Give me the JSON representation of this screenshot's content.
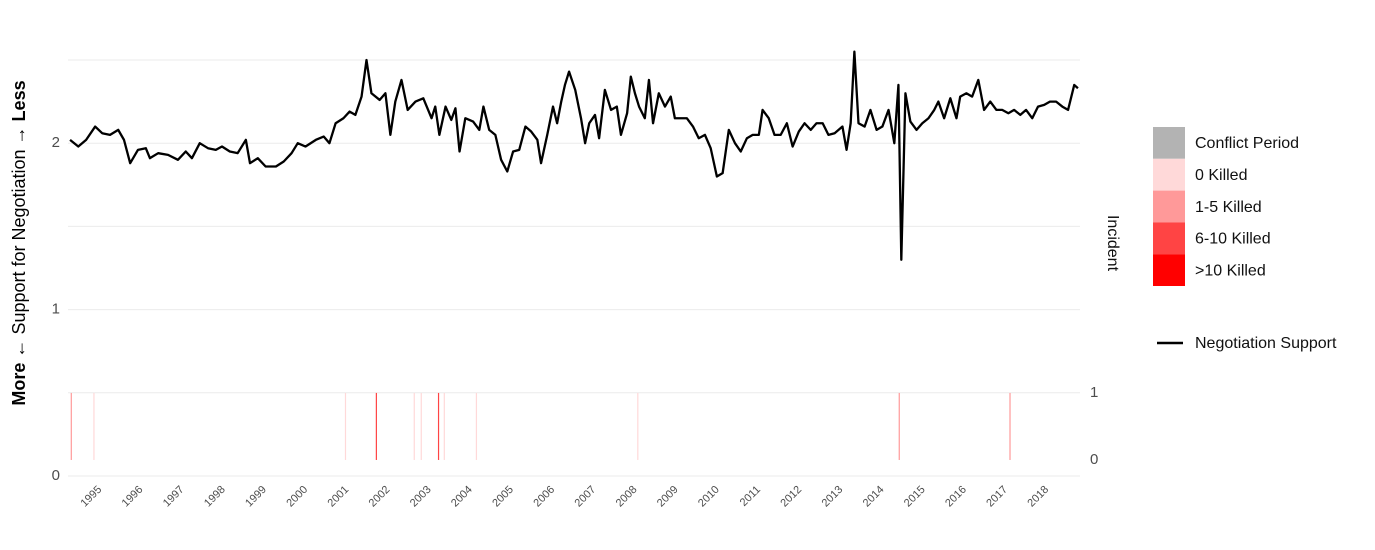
{
  "chart_data": {
    "type": "line",
    "x": [
      1994.27,
      1994.47,
      1994.66,
      1994.88,
      1995.05,
      1995.24,
      1995.44,
      1995.58,
      1995.73,
      1995.92,
      1996.11,
      1996.21,
      1996.41,
      1996.65,
      1996.89,
      1997.08,
      1997.23,
      1997.42,
      1997.62,
      1997.81,
      1997.96,
      1998.15,
      1998.34,
      1998.54,
      1998.64,
      1998.83,
      1999.02,
      1999.27,
      1999.46,
      1999.65,
      1999.8,
      1999.99,
      2000.24,
      2000.43,
      2000.57,
      2000.72,
      2000.91,
      2001.06,
      2001.2,
      2001.35,
      2001.47,
      2001.59,
      2001.79,
      2001.93,
      2002.05,
      2002.17,
      2002.32,
      2002.47,
      2002.66,
      2002.85,
      2003.05,
      2003.14,
      2003.24,
      2003.39,
      2003.53,
      2003.63,
      2003.73,
      2003.87,
      2004.06,
      2004.21,
      2004.31,
      2004.45,
      2004.6,
      2004.74,
      2004.89,
      2005.03,
      2005.18,
      2005.33,
      2005.47,
      2005.62,
      2005.71,
      2005.86,
      2006.0,
      2006.1,
      2006.2,
      2006.29,
      2006.39,
      2006.54,
      2006.68,
      2006.78,
      2006.88,
      2007.02,
      2007.12,
      2007.26,
      2007.41,
      2007.55,
      2007.65,
      2007.8,
      2007.89,
      2007.99,
      2008.09,
      2008.23,
      2008.33,
      2008.43,
      2008.57,
      2008.72,
      2008.86,
      2008.96,
      2009.06,
      2009.25,
      2009.4,
      2009.54,
      2009.69,
      2009.83,
      2009.98,
      2010.12,
      2010.27,
      2010.42,
      2010.56,
      2010.71,
      2010.85,
      2011.0,
      2011.09,
      2011.24,
      2011.38,
      2011.53,
      2011.68,
      2011.82,
      2011.97,
      2012.11,
      2012.26,
      2012.4,
      2012.55,
      2012.69,
      2012.84,
      2013.03,
      2013.13,
      2013.23,
      2013.32,
      2013.42,
      2013.57,
      2013.71,
      2013.86,
      2014.0,
      2014.15,
      2014.29,
      2014.39,
      2014.46,
      2014.56,
      2014.68,
      2014.83,
      2014.97,
      2015.12,
      2015.26,
      2015.36,
      2015.5,
      2015.65,
      2015.8,
      2015.89,
      2016.04,
      2016.18,
      2016.33,
      2016.47,
      2016.62,
      2016.77,
      2016.91,
      2017.06,
      2017.2,
      2017.35,
      2017.49,
      2017.64,
      2017.78,
      2017.93,
      2018.07,
      2018.22,
      2018.37,
      2018.51,
      2018.66,
      2018.75
    ],
    "series": [
      {
        "name": "Negotiation Support",
        "color": "#000000",
        "values": [
          2.02,
          1.98,
          2.02,
          2.1,
          2.06,
          2.05,
          2.08,
          2.02,
          1.88,
          1.96,
          1.97,
          1.91,
          1.94,
          1.93,
          1.9,
          1.95,
          1.91,
          2.0,
          1.97,
          1.96,
          1.98,
          1.95,
          1.94,
          2.02,
          1.88,
          1.91,
          1.86,
          1.86,
          1.89,
          1.94,
          2.0,
          1.98,
          2.02,
          2.04,
          2.0,
          2.12,
          2.15,
          2.19,
          2.17,
          2.28,
          2.5,
          2.3,
          2.26,
          2.3,
          2.05,
          2.25,
          2.38,
          2.2,
          2.25,
          2.27,
          2.15,
          2.22,
          2.05,
          2.22,
          2.14,
          2.21,
          1.95,
          2.15,
          2.13,
          2.08,
          2.22,
          2.08,
          2.05,
          1.9,
          1.83,
          1.95,
          1.96,
          2.1,
          2.07,
          2.02,
          1.88,
          2.05,
          2.22,
          2.12,
          2.25,
          2.35,
          2.43,
          2.32,
          2.15,
          2.0,
          2.12,
          2.17,
          2.03,
          2.32,
          2.2,
          2.22,
          2.05,
          2.18,
          2.4,
          2.3,
          2.22,
          2.15,
          2.38,
          2.12,
          2.3,
          2.22,
          2.28,
          2.15,
          2.15,
          2.15,
          2.1,
          2.03,
          2.05,
          1.97,
          1.8,
          1.82,
          2.08,
          2.0,
          1.95,
          2.03,
          2.05,
          2.05,
          2.2,
          2.15,
          2.05,
          2.05,
          2.12,
          1.98,
          2.07,
          2.12,
          2.08,
          2.12,
          2.12,
          2.05,
          2.06,
          2.1,
          1.96,
          2.12,
          2.55,
          2.12,
          2.1,
          2.2,
          2.08,
          2.1,
          2.2,
          2.0,
          2.35,
          1.3,
          2.3,
          2.13,
          2.08,
          2.12,
          2.15,
          2.2,
          2.25,
          2.15,
          2.27,
          2.15,
          2.28,
          2.3,
          2.28,
          2.38,
          2.2,
          2.25,
          2.2,
          2.2,
          2.18,
          2.2,
          2.17,
          2.2,
          2.15,
          2.22,
          2.23,
          2.25,
          2.25,
          2.22,
          2.2,
          2.35,
          2.33
        ]
      }
    ],
    "xlim": [
      1994.22,
      2018.8
    ],
    "xticks": [
      1995,
      1996,
      1997,
      1998,
      1999,
      2000,
      2001,
      2002,
      2003,
      2004,
      2005,
      2006,
      2007,
      2008,
      2009,
      2010,
      2011,
      2012,
      2013,
      2014,
      2015,
      2016,
      2017,
      2018
    ],
    "ylim": [
      0,
      2.53
    ],
    "yticks": [
      0,
      1,
      2
    ],
    "minor_yticks": [
      0.5,
      1.5,
      2.5
    ],
    "grid": true,
    "y_label_parts": [
      "More",
      "← Support for Negotiation →",
      "Less"
    ],
    "y2lim": [
      -0.239,
      6.04
    ],
    "y2ticks": [
      0,
      1
    ],
    "legend_title": "Incident",
    "incident_levels": [
      {
        "name": "Conflict Period",
        "color": "#b3b3b3"
      },
      {
        "name": "0 Killed",
        "color": "#ffd9d9"
      },
      {
        "name": "1-5 Killed",
        "color": "#ff9999"
      },
      {
        "name": "6-10 Killed",
        "color": "#ff4444"
      },
      {
        "name": ">10 Killed",
        "color": "#ff0000"
      }
    ],
    "incidents": {
      "axis": "y2",
      "x": [
        1994.3,
        1994.85,
        2000.96,
        2001.71,
        2002.63,
        2002.8,
        2003.22,
        2003.36,
        2004.14,
        2008.06,
        2014.41,
        2017.1
      ],
      "values": [
        1,
        1,
        1,
        1,
        1,
        1,
        1,
        1,
        1,
        1,
        1,
        1
      ],
      "colors": [
        "#ff9999",
        "#ffd9d9",
        "#ffd9d9",
        "#ff4444",
        "#ffd9d9",
        "#ffd9d9",
        "#ff4444",
        "#ffd9d9",
        "#ffd9d9",
        "#ffd9d9",
        "#ff9999",
        "#ff9999"
      ]
    }
  }
}
